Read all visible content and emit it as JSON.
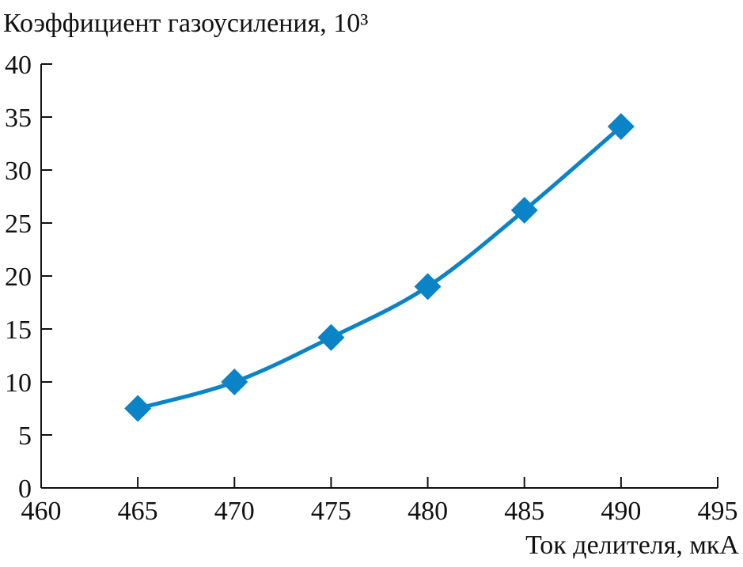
{
  "chart_data": {
    "type": "line",
    "ylabel": "Коэффициент газоусиления, 10³",
    "xlabel": "Ток делителя, мкА",
    "x": [
      465,
      470,
      475,
      480,
      485,
      490
    ],
    "series": [
      {
        "color": "#0a84c6",
        "values": [
          7.5,
          10,
          14.2,
          19,
          26.2,
          34.1
        ]
      }
    ],
    "xlim": [
      460,
      495
    ],
    "xticks": [
      460,
      465,
      470,
      475,
      480,
      485,
      490,
      495
    ],
    "ylim": [
      0,
      40
    ],
    "yticks": [
      0,
      5,
      10,
      15,
      20,
      25,
      30,
      35,
      40
    ],
    "marker": "diamond"
  }
}
